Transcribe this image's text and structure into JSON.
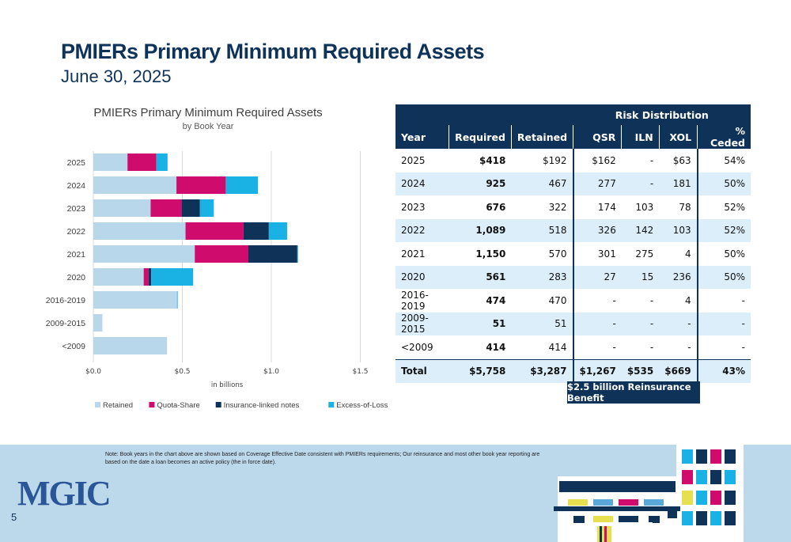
{
  "page": {
    "title": "PMIERs Primary Minimum Required Assets",
    "subtitle": "June 30, 2025",
    "page_number": "5",
    "logo": "MGIC",
    "note": "Note: Book years in the chart above are shown based on Coverage Effective Date consistent with PMIERs requirements; Our reinsurance and most other book year reporting are based on the date a loan becomes an active policy (the in force date)."
  },
  "chart_data": {
    "type": "bar",
    "orientation": "horizontal",
    "stacked": true,
    "title": "PMIERs Primary Minimum Required Assets",
    "subtitle": "by Book Year",
    "xlabel": "in billions",
    "xlim": [
      0,
      1.5
    ],
    "xticks": [
      "$0.0",
      "$0.5",
      "$1.0",
      "$1.5"
    ],
    "grid": true,
    "legend_position": "bottom",
    "categories": [
      "2025",
      "2024",
      "2023",
      "2022",
      "2021",
      "2020",
      "2016-2019",
      "2009-2015",
      "<2009"
    ],
    "series": [
      {
        "name": "Retained",
        "color": "#b9d7eb",
        "values": [
          0.192,
          0.467,
          0.322,
          0.518,
          0.57,
          0.283,
          0.47,
          0.051,
          0.414
        ]
      },
      {
        "name": "Quota-Share",
        "color": "#cf0b6d",
        "values": [
          0.162,
          0.277,
          0.174,
          0.326,
          0.301,
          0.027,
          0,
          0,
          0
        ]
      },
      {
        "name": "Insurance-linked notes",
        "color": "#0f3358",
        "values": [
          0,
          0,
          0.103,
          0.142,
          0.275,
          0.015,
          0,
          0,
          0
        ]
      },
      {
        "name": "Excess-of-Loss",
        "color": "#1ab1e4",
        "values": [
          0.063,
          0.181,
          0.078,
          0.103,
          0.004,
          0.236,
          0.004,
          0,
          0
        ]
      }
    ]
  },
  "table": {
    "title": "Risk Distribution",
    "headers": [
      "Year",
      "Required",
      "Retained",
      "QSR",
      "ILN",
      "XOL",
      "% Ceded"
    ],
    "rows": [
      [
        "2025",
        "$418",
        "$192",
        "$162",
        "-",
        "$63",
        "54%"
      ],
      [
        "2024",
        "925",
        "467",
        "277",
        "-",
        "181",
        "50%"
      ],
      [
        "2023",
        "676",
        "322",
        "174",
        "103",
        "78",
        "52%"
      ],
      [
        "2022",
        "1,089",
        "518",
        "326",
        "142",
        "103",
        "52%"
      ],
      [
        "2021",
        "1,150",
        "570",
        "301",
        "275",
        "4",
        "50%"
      ],
      [
        "2020",
        "561",
        "283",
        "27",
        "15",
        "236",
        "50%"
      ],
      [
        "2016-2019",
        "474",
        "470",
        "-",
        "-",
        "4",
        "-"
      ],
      [
        "2009-2015",
        "51",
        "51",
        "-",
        "-",
        "-",
        "-"
      ],
      [
        "<2009",
        "414",
        "414",
        "-",
        "-",
        "-",
        "-"
      ]
    ],
    "total": [
      "Total",
      "$5,758",
      "$3,287",
      "$1,267",
      "$535",
      "$669",
      "43%"
    ],
    "benefit": "$2.5 billion Reinsurance Benefit"
  }
}
